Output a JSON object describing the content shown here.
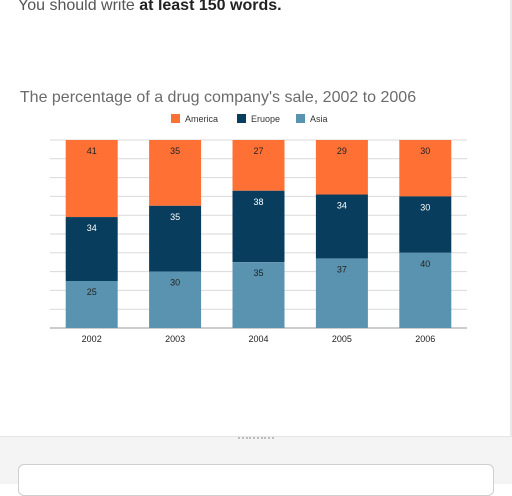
{
  "instruction": {
    "prefix": "You should write ",
    "emphasis": "at least 150 words."
  },
  "chart_data": {
    "type": "bar",
    "stacked": true,
    "title": "The percentage of a drug company's sale, 2002 to 2006",
    "categories": [
      "2002",
      "2003",
      "2004",
      "2005",
      "2006"
    ],
    "series": [
      {
        "name": "America",
        "color": "#ff7035",
        "values": [
          41,
          35,
          27,
          29,
          30
        ]
      },
      {
        "name": "Eruope",
        "color": "#083d5e",
        "values": [
          34,
          35,
          38,
          34,
          30
        ]
      },
      {
        "name": "Asia",
        "color": "#5a93b0",
        "values": [
          25,
          30,
          35,
          37,
          40
        ]
      }
    ],
    "ylim": [
      0,
      100
    ],
    "grid": true,
    "legend_position": "top",
    "xlabel": "",
    "ylabel": ""
  },
  "answer": {
    "value": ""
  }
}
